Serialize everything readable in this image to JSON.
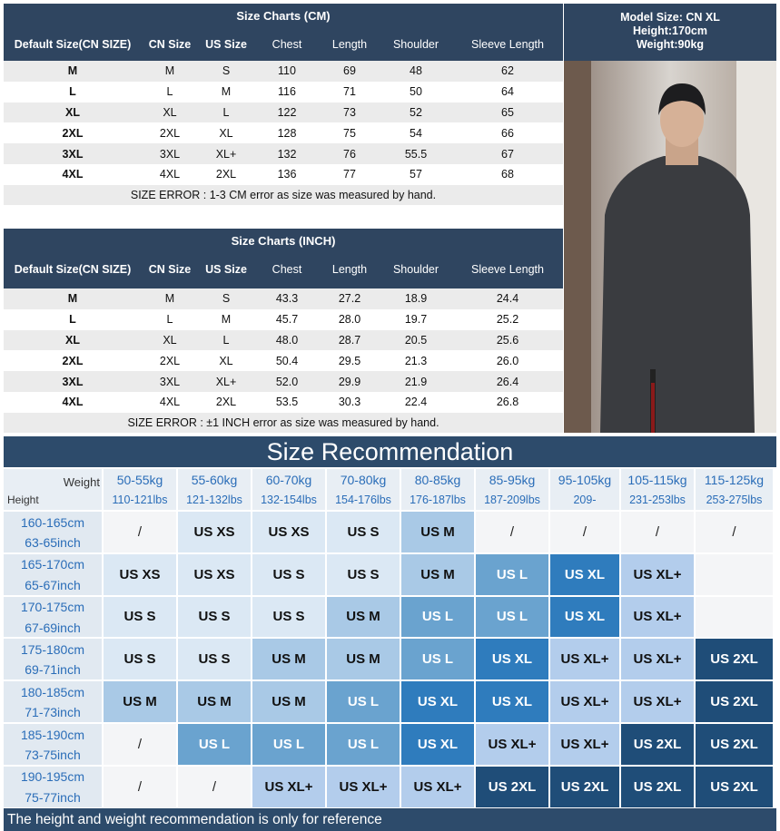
{
  "size_chart_cm": {
    "title": "Size Charts (CM)",
    "columns": [
      "Default Size(CN SIZE)",
      "CN Size",
      "US Size",
      "Chest",
      "Length",
      "Shoulder",
      "Sleeve Length"
    ],
    "rows": [
      [
        "M",
        "M",
        "S",
        "110",
        "69",
        "48",
        "62"
      ],
      [
        "L",
        "L",
        "M",
        "116",
        "71",
        "50",
        "64"
      ],
      [
        "XL",
        "XL",
        "L",
        "122",
        "73",
        "52",
        "65"
      ],
      [
        "2XL",
        "2XL",
        "XL",
        "128",
        "75",
        "54",
        "66"
      ],
      [
        "3XL",
        "3XL",
        "XL+",
        "132",
        "76",
        "55.5",
        "67"
      ],
      [
        "4XL",
        "4XL",
        "2XL",
        "136",
        "77",
        "57",
        "68"
      ]
    ],
    "note": "SIZE ERROR : 1-3 CM error as size was measured by hand."
  },
  "size_chart_inch": {
    "title": "Size Charts (INCH)",
    "columns": [
      "Default Size(CN SIZE)",
      "CN Size",
      "US Size",
      "Chest",
      "Length",
      "Shoulder",
      "Sleeve Length"
    ],
    "rows": [
      [
        "M",
        "M",
        "S",
        "43.3",
        "27.2",
        "18.9",
        "24.4"
      ],
      [
        "L",
        "L",
        "M",
        "45.7",
        "28.0",
        "19.7",
        "25.2"
      ],
      [
        "XL",
        "XL",
        "L",
        "48.0",
        "28.7",
        "20.5",
        "25.6"
      ],
      [
        "2XL",
        "2XL",
        "XL",
        "50.4",
        "29.5",
        "21.3",
        "26.0"
      ],
      [
        "3XL",
        "3XL",
        "XL+",
        "52.0",
        "29.9",
        "21.9",
        "26.4"
      ],
      [
        "4XL",
        "4XL",
        "2XL",
        "53.5",
        "30.3",
        "22.4",
        "26.8"
      ]
    ],
    "note": "SIZE ERROR : ±1 INCH error as size was measured by hand."
  },
  "model": [
    "Model Size: CN XL",
    "Height:170cm",
    "Weight:90kg"
  ],
  "recommendation": {
    "title": "Size Recommendation",
    "weight_label": "Weight",
    "height_label": "Height",
    "weights": [
      {
        "kg": "50-55kg",
        "lbs": "110-121lbs"
      },
      {
        "kg": "55-60kg",
        "lbs": "121-132lbs"
      },
      {
        "kg": "60-70kg",
        "lbs": "132-154lbs"
      },
      {
        "kg": "70-80kg",
        "lbs": "154-176lbs"
      },
      {
        "kg": "80-85kg",
        "lbs": "176-187lbs"
      },
      {
        "kg": "85-95kg",
        "lbs": "187-209lbs"
      },
      {
        "kg": "95-105kg",
        "lbs": "209-"
      },
      {
        "kg": "105-115kg",
        "lbs": "231-253lbs"
      },
      {
        "kg": "115-125kg",
        "lbs": "253-275lbs"
      }
    ],
    "heights": [
      {
        "cm": "160-165cm",
        "inch": "63-65inch"
      },
      {
        "cm": "165-170cm",
        "inch": "65-67inch"
      },
      {
        "cm": "170-175cm",
        "inch": "67-69inch"
      },
      {
        "cm": "175-180cm",
        "inch": "69-71inch"
      },
      {
        "cm": "180-185cm",
        "inch": "71-73inch"
      },
      {
        "cm": "185-190cm",
        "inch": "73-75inch"
      },
      {
        "cm": "190-195cm",
        "inch": "75-77inch"
      }
    ],
    "rows": [
      [
        "/",
        "US XS",
        "US XS",
        "US S",
        "US M",
        "/",
        "/",
        "/",
        "/"
      ],
      [
        "US XS",
        "US XS",
        "US S",
        "US S",
        "US M",
        "US L",
        "US XL",
        "US XL+",
        null
      ],
      [
        "US S",
        "US S",
        "US S",
        "US M",
        "US L",
        "US L",
        "US XL",
        "US XL+",
        null
      ],
      [
        "US S",
        "US S",
        "US M",
        "US M",
        "US L",
        "US XL",
        "US XL+",
        "US XL+",
        "US 2XL"
      ],
      [
        "US M",
        "US M",
        "US M",
        "US L",
        "US XL",
        "US XL",
        "US XL+",
        "US XL+",
        "US 2XL"
      ],
      [
        "/",
        "US L",
        "US L",
        "US L",
        "US XL",
        "US XL+",
        "US XL+",
        "US 2XL",
        "US 2XL"
      ],
      [
        "/",
        "/",
        "US XL+",
        "US XL+",
        "US XL+",
        "US 2XL",
        "US 2XL",
        "US 2XL",
        "US 2XL"
      ]
    ],
    "cell_colors": {
      "/": {
        "fill": "#f4f5f7",
        "text": "#222222"
      },
      "US XS": {
        "fill": "#dbe8f4",
        "text": "#111111"
      },
      "US S": {
        "fill": "#dbe8f4",
        "text": "#111111"
      },
      "US M": {
        "fill": "#a9c9e6",
        "text": "#111111"
      },
      "US L": {
        "fill": "#6aa3cf",
        "text": "#ffffff"
      },
      "US XL": {
        "fill": "#2f7cbd",
        "text": "#ffffff"
      },
      "US XL+": {
        "fill": "#b3cdec",
        "text": "#111111"
      },
      "US 2XL": {
        "fill": "#1f4d78",
        "text": "#ffffff"
      }
    },
    "note": "The height and weight recommendation is only for reference"
  }
}
